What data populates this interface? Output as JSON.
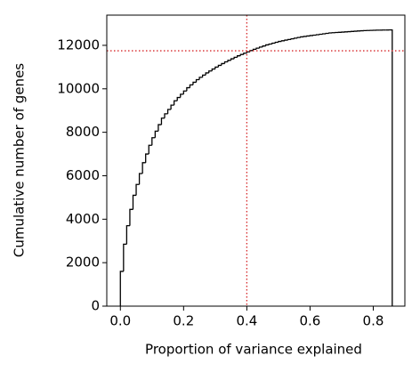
{
  "chart_data": {
    "type": "histogram",
    "xlabel": "Proportion of variance explained",
    "ylabel": "Cumulative number of genes",
    "bins": [
      0,
      0.01,
      0.02,
      0.03,
      0.04,
      0.05,
      0.06,
      0.07,
      0.08,
      0.09,
      0.1,
      0.11,
      0.12,
      0.13,
      0.14,
      0.15,
      0.16,
      0.17,
      0.18,
      0.19,
      0.2,
      0.21,
      0.22,
      0.23,
      0.24,
      0.25,
      0.26,
      0.27,
      0.28,
      0.29,
      0.3,
      0.31,
      0.32,
      0.33,
      0.34,
      0.35,
      0.36,
      0.37,
      0.38,
      0.39,
      0.4,
      0.41,
      0.42,
      0.43,
      0.44,
      0.45,
      0.46,
      0.47,
      0.48,
      0.49,
      0.5,
      0.51,
      0.52,
      0.53,
      0.54,
      0.55,
      0.56,
      0.57,
      0.58,
      0.59,
      0.6,
      0.61,
      0.62,
      0.63,
      0.64,
      0.65,
      0.66,
      0.67,
      0.68,
      0.69,
      0.7,
      0.71,
      0.72,
      0.73,
      0.74,
      0.75,
      0.76,
      0.77,
      0.78,
      0.79,
      0.8,
      0.81,
      0.82,
      0.83,
      0.84,
      0.85,
      0.86
    ],
    "values": [
      1600,
      2850,
      3700,
      4450,
      5100,
      5600,
      6100,
      6600,
      7000,
      7400,
      7750,
      8050,
      8350,
      8650,
      8850,
      9050,
      9250,
      9450,
      9600,
      9750,
      9900,
      10050,
      10180,
      10300,
      10420,
      10530,
      10630,
      10730,
      10820,
      10910,
      11000,
      11080,
      11160,
      11240,
      11310,
      11380,
      11450,
      11520,
      11580,
      11640,
      11700,
      11760,
      11820,
      11870,
      11920,
      11970,
      12020,
      12060,
      12100,
      12140,
      12180,
      12210,
      12240,
      12270,
      12300,
      12330,
      12360,
      12390,
      12410,
      12430,
      12450,
      12470,
      12490,
      12510,
      12530,
      12550,
      12570,
      12580,
      12590,
      12600,
      12610,
      12620,
      12630,
      12640,
      12650,
      12660,
      12670,
      12680,
      12685,
      12690,
      12695,
      12700,
      12700,
      12705,
      12705,
      12710
    ],
    "color": "#000000",
    "xlim": [
      -0.043,
      0.9
    ],
    "ylim": [
      0,
      13390
    ],
    "xticks": [
      {
        "value": 0,
        "label": "0.0"
      },
      0.2,
      0.4,
      0.6,
      0.8
    ],
    "yticks": [
      0,
      2000,
      4000,
      6000,
      8000,
      10000,
      12000
    ],
    "reference_lines": {
      "x": 0.4,
      "y": 11750,
      "color": "#d62728"
    }
  }
}
